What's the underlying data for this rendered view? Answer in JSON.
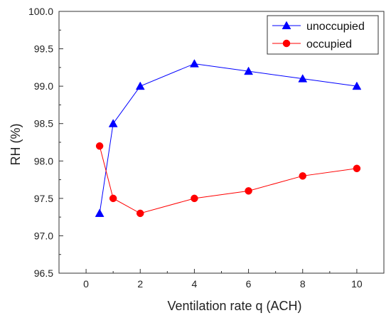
{
  "chart_data": {
    "type": "line",
    "title": "",
    "xlabel": "Ventilation rate q (ACH)",
    "ylabel": "RH (%)",
    "xlim": [
      -1,
      11
    ],
    "ylim": [
      96.5,
      100.0
    ],
    "x_ticks": [
      0,
      2,
      4,
      6,
      8,
      10
    ],
    "y_ticks": [
      96.5,
      97.0,
      97.5,
      98.0,
      98.5,
      99.0,
      99.5,
      100.0
    ],
    "x_tick_labels": [
      "0",
      "2",
      "4",
      "6",
      "8",
      "10"
    ],
    "y_tick_labels": [
      "96.5",
      "97.0",
      "97.5",
      "98.0",
      "98.5",
      "99.0",
      "99.5",
      "100.0"
    ],
    "grid": false,
    "legend_position": "top-right",
    "series": [
      {
        "name": "unoccupied",
        "color": "#0000ff",
        "marker": "triangle",
        "x": [
          0.5,
          1,
          2,
          4,
          6,
          8,
          10
        ],
        "y": [
          97.3,
          98.5,
          99.0,
          99.3,
          99.2,
          99.1,
          99.0
        ]
      },
      {
        "name": "occupied",
        "color": "#ff0000",
        "marker": "circle",
        "x": [
          0.5,
          1,
          2,
          4,
          6,
          8,
          10
        ],
        "y": [
          98.2,
          97.5,
          97.3,
          97.5,
          97.6,
          97.8,
          97.9
        ]
      }
    ]
  }
}
